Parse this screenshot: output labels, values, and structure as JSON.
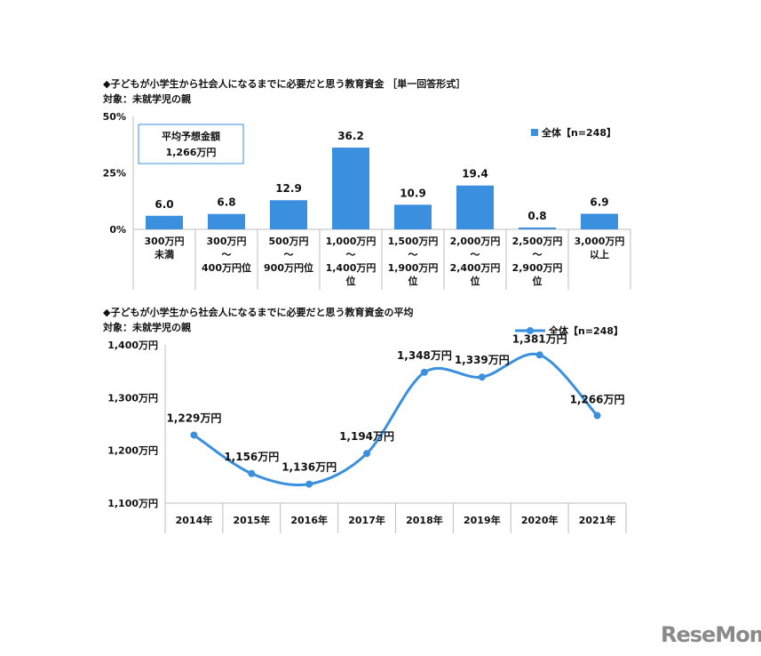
{
  "chart1": {
    "title": "◆子どもが小学生から社会人になるまでに必要だと思う教育資金 ［単一回答形式］",
    "subtitle": "対象：未就学児の親",
    "info_box": {
      "line1": "平均予想金額",
      "line2": "1,266万円"
    },
    "legend": "全体【n=248】",
    "color": "#3a8fde"
  },
  "chart2": {
    "title": "◆子どもが小学生から社会人になるまでに必要だと思う教育資金の平均",
    "subtitle": "対象：未就学児の親",
    "legend": "全体【n=248】",
    "color": "#3a8fde"
  },
  "logo": "ReseMom",
  "chart_data": [
    {
      "type": "bar",
      "ylim": [
        0,
        50
      ],
      "yticks": [
        "0%",
        "25%",
        "50%"
      ],
      "ytick_values": [
        0,
        25,
        50
      ],
      "categories": [
        [
          "300万円",
          "未満"
        ],
        [
          "300万円",
          "～",
          "400万円位"
        ],
        [
          "500万円",
          "～",
          "900万円位"
        ],
        [
          "1,000万円",
          "～",
          "1,400万円",
          "位"
        ],
        [
          "1,500万円",
          "～",
          "1,900万円",
          "位"
        ],
        [
          "2,000万円",
          "～",
          "2,400万円",
          "位"
        ],
        [
          "2,500万円",
          "～",
          "2,900万円",
          "位"
        ],
        [
          "3,000万円",
          "以上"
        ]
      ],
      "series": [
        {
          "name": "全体【n=248】",
          "values": [
            6.0,
            6.8,
            12.9,
            36.2,
            10.9,
            19.4,
            0.8,
            6.9
          ],
          "labels": [
            "6.0",
            "6.8",
            "12.9",
            "36.2",
            "10.9",
            "19.4",
            "0.8",
            "6.9"
          ]
        }
      ],
      "grid": false,
      "legend_position": "top-right"
    },
    {
      "type": "line",
      "ylim": [
        1100,
        1400
      ],
      "yticks": [
        "1,100万円",
        "1,200万円",
        "1,300万円",
        "1,400万円"
      ],
      "ytick_values": [
        1100,
        1200,
        1300,
        1400
      ],
      "categories": [
        "2014年",
        "2015年",
        "2016年",
        "2017年",
        "2018年",
        "2019年",
        "2020年",
        "2021年"
      ],
      "series": [
        {
          "name": "全体【n=248】",
          "values": [
            1229,
            1156,
            1136,
            1194,
            1348,
            1339,
            1381,
            1266
          ],
          "labels": [
            "1,229万円",
            "1,156万円",
            "1,136万円",
            "1,194万円",
            "1,348万円",
            "1,339万円",
            "1,381万円",
            "1,266万円"
          ]
        }
      ],
      "grid": false,
      "legend_position": "top-right"
    }
  ]
}
